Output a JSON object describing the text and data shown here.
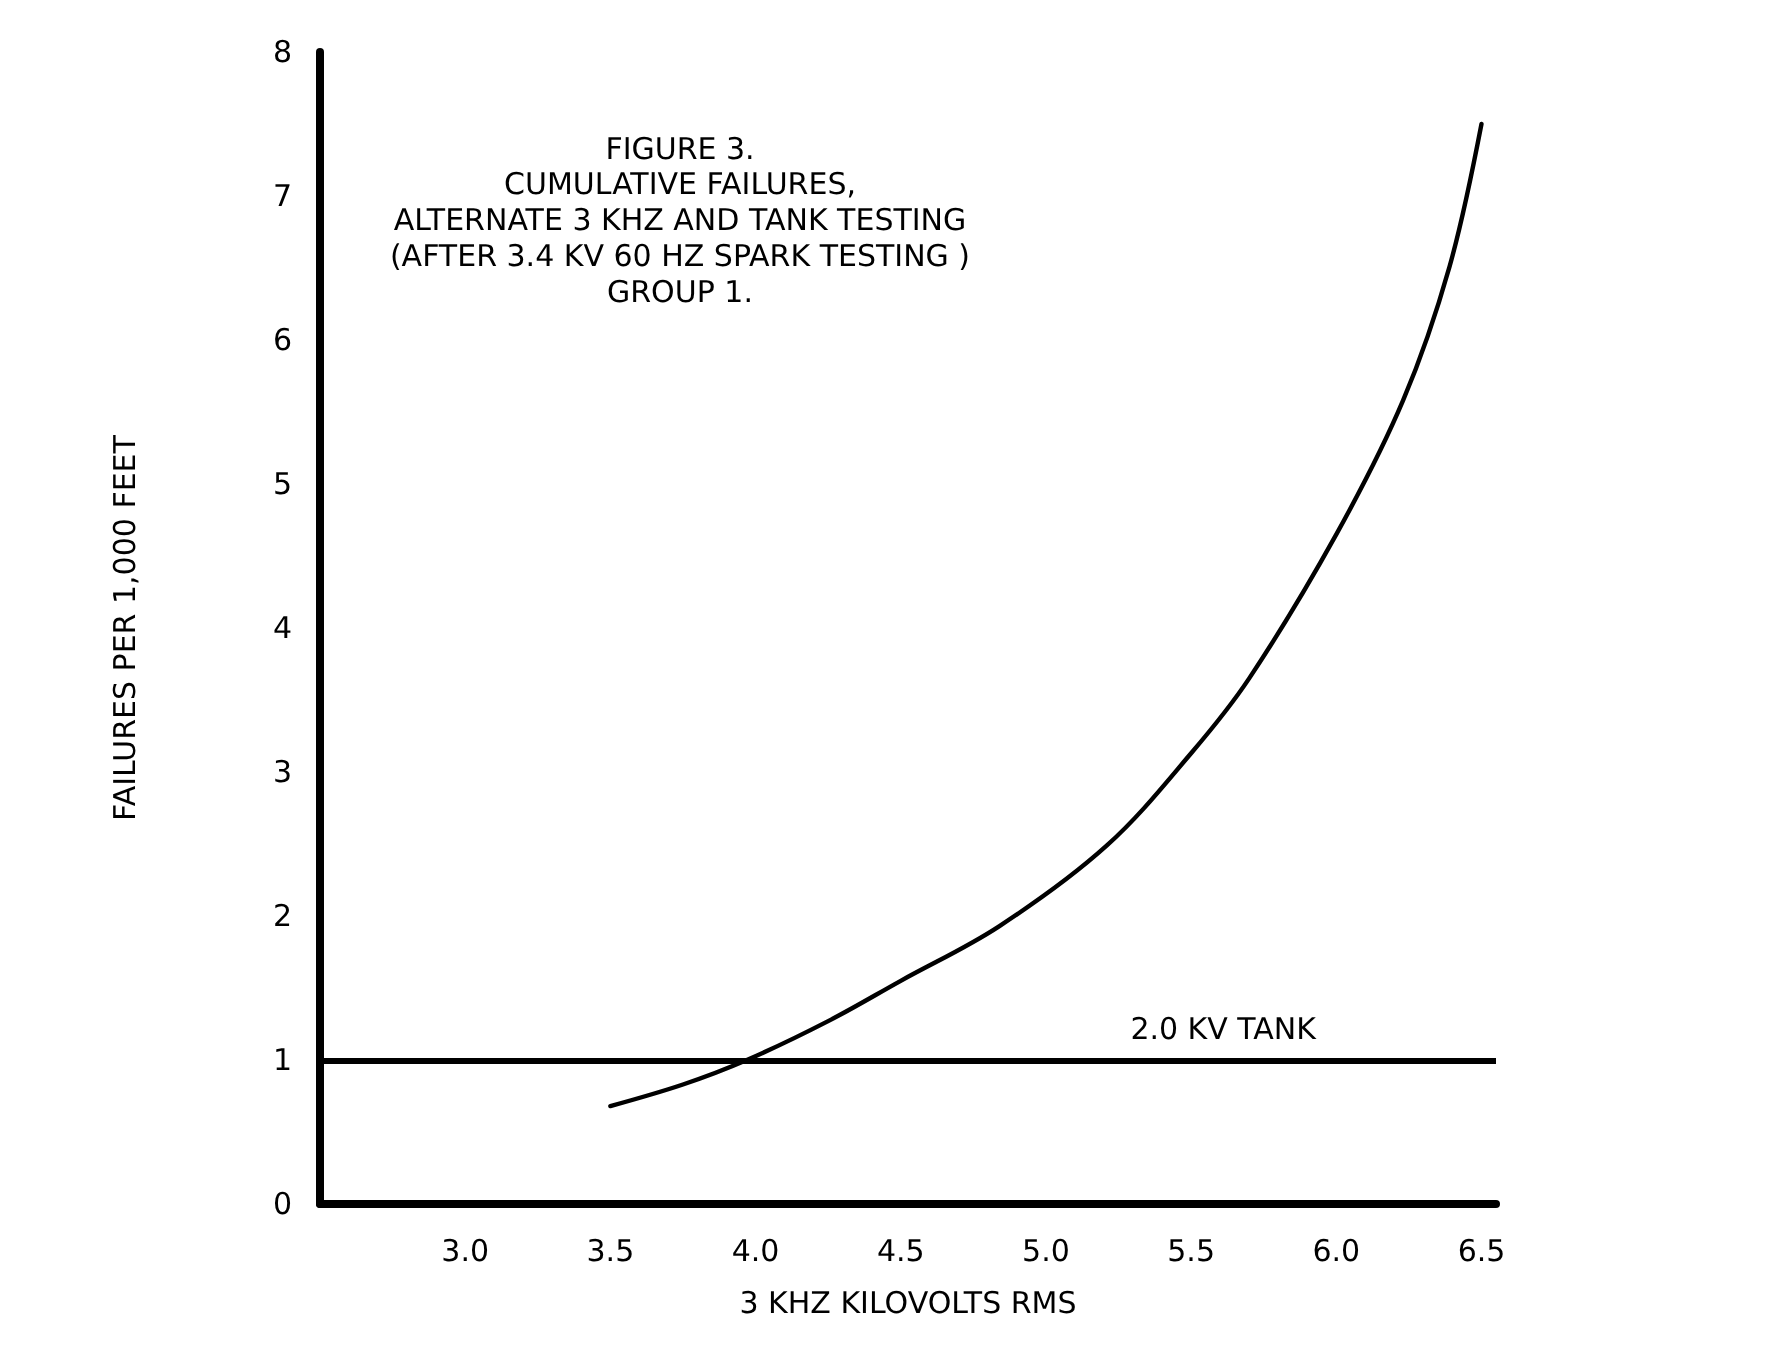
{
  "chart_data": {
    "type": "line",
    "title": "FIGURE 3.",
    "subtitle": "CUMULATIVE FAILURES,\nALTERNATE 3 KHZ AND TANK TESTING\n(AFTER 3.4 KV 60 HZ SPARK TESTING )\nGROUP 1.",
    "xlabel": "3 KHZ KILOVOLTS RMS",
    "ylabel": "FAILURES PER 1,000 FEET",
    "x": [
      3.5,
      3.75,
      3.97,
      4.25,
      4.5,
      4.84,
      5.21,
      5.5,
      5.7,
      6.0,
      6.23,
      6.39,
      6.5
    ],
    "series": [
      {
        "color": "#000000",
        "values": [
          0.68,
          0.83,
          1.0,
          1.27,
          1.55,
          1.93,
          2.49,
          3.13,
          3.65,
          4.65,
          5.58,
          6.51,
          7.5
        ]
      }
    ],
    "xlim": [
      2.5,
      6.55
    ],
    "xticks": [
      {
        "value": 3,
        "label": "3.0"
      },
      3.5,
      {
        "value": 4,
        "label": "4.0"
      },
      4.5,
      {
        "value": 5,
        "label": "5.0"
      },
      5.5,
      {
        "value": 6,
        "label": "6.0"
      },
      6.5
    ],
    "ylim": [
      0,
      8
    ],
    "yticks": [
      0,
      1,
      2,
      3,
      4,
      5,
      6,
      7,
      8
    ],
    "ref_lines": [
      {
        "axis": "y",
        "value": 1,
        "label": "2.0 KV TANK",
        "color": "#000000"
      }
    ],
    "grid": false,
    "marker": "none",
    "line_style": "solid"
  }
}
